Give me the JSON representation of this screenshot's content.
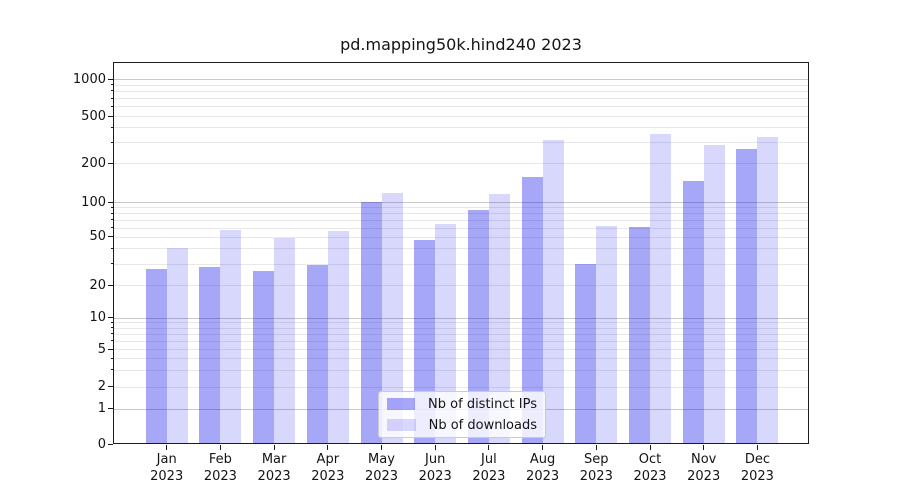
{
  "chart_data": {
    "type": "bar",
    "title": "pd.mapping50k.hind240 2023",
    "categories": [
      "Jan",
      "Feb",
      "Mar",
      "Apr",
      "May",
      "Jun",
      "Jul",
      "Aug",
      "Sep",
      "Oct",
      "Nov",
      "Dec"
    ],
    "year_label": "2023",
    "series": [
      {
        "name": "Nb of distinct IPs",
        "color": "#0a0aeb",
        "alpha": 0.36,
        "values": [
          27,
          28,
          26,
          29,
          100,
          47,
          85,
          156,
          30,
          61,
          144,
          265
        ]
      },
      {
        "name": "Nb of downloads",
        "color": "#0a0aeb",
        "alpha": 0.16,
        "values": [
          40,
          57,
          49,
          56,
          118,
          64,
          115,
          315,
          62,
          350,
          285,
          330
        ]
      }
    ],
    "xlabel": "",
    "ylabel": "",
    "yscale": "symlog",
    "ylim": [
      0,
      1400
    ],
    "yticks": [
      1000,
      500,
      200,
      100,
      50,
      20,
      10,
      5,
      2,
      1,
      0
    ],
    "grid": true,
    "legend_position": "lower center"
  }
}
